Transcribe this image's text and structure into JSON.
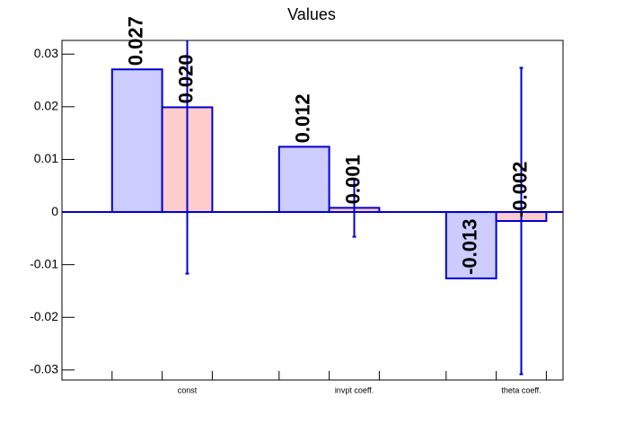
{
  "chart_data": {
    "type": "bar",
    "title": "Values",
    "categories": [
      "const",
      "invpt coeff.",
      "theta coeff."
    ],
    "series": [
      {
        "color": "#ccccff",
        "values": [
          0.0271,
          0.0124,
          -0.0126
        ],
        "value_labels": [
          "0.027",
          "0.012",
          "-0.013"
        ]
      },
      {
        "color": "#ffcccc",
        "values": [
          0.0199,
          0.0008,
          -0.0017
        ],
        "value_labels": [
          "0.020",
          "0.001",
          "-0.002"
        ],
        "errors": [
          0.0316,
          0.0055,
          0.0291
        ]
      }
    ],
    "ylim": [
      -0.0319,
      0.0326
    ],
    "yticks": [
      -0.03,
      -0.02,
      -0.01,
      0,
      0.01,
      0.02,
      0.03
    ]
  }
}
